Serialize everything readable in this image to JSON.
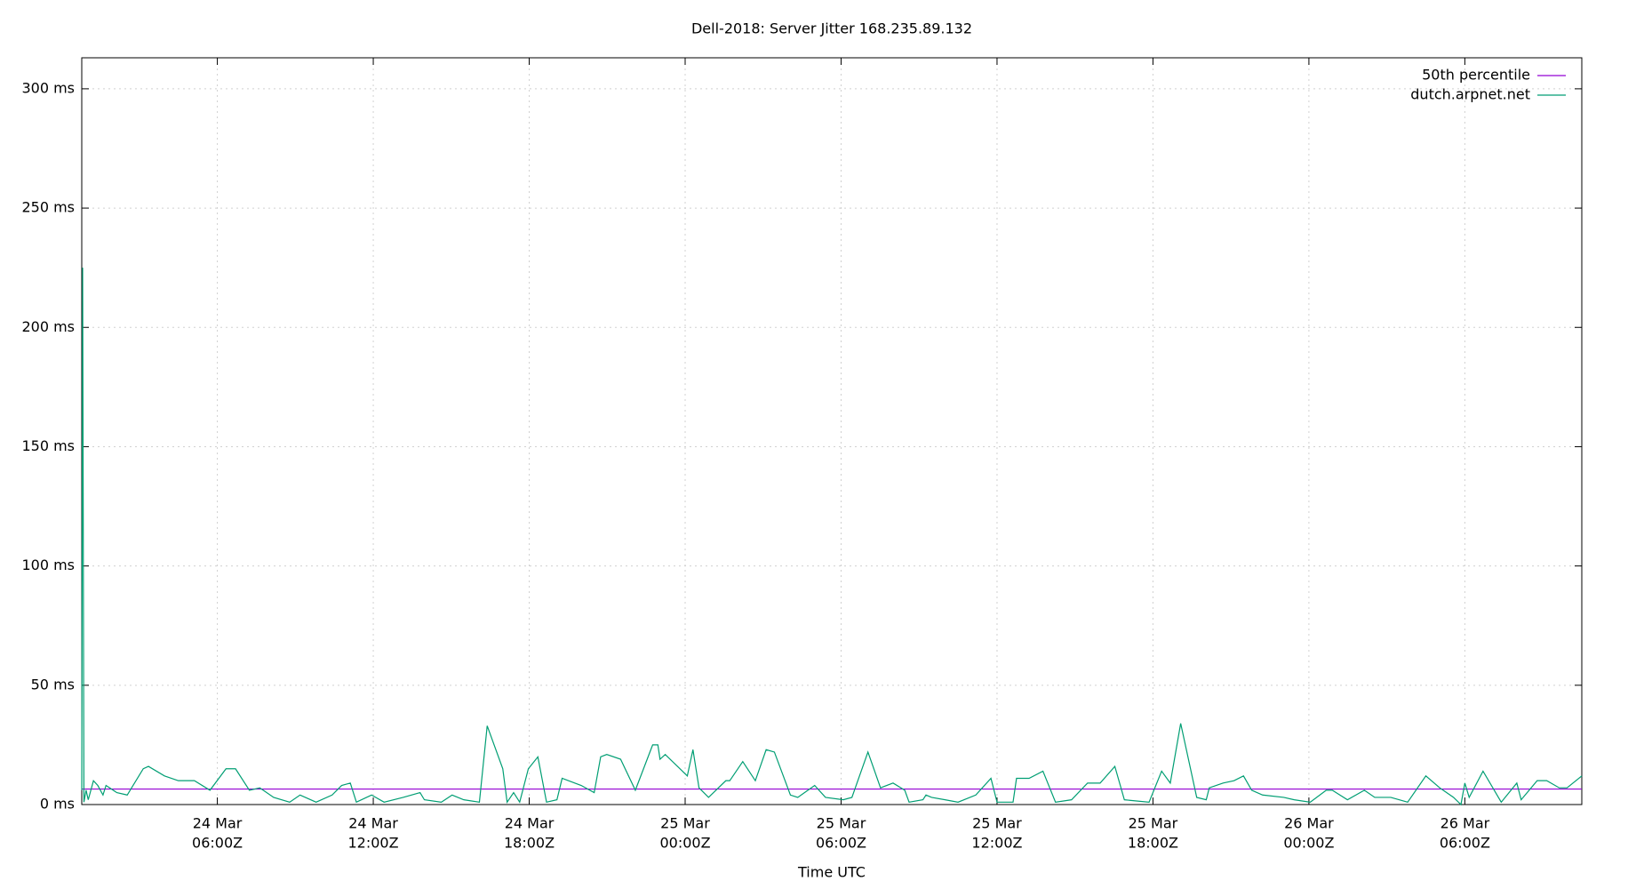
{
  "chart_data": {
    "type": "line",
    "title": "Dell-2018: Server Jitter 168.235.89.132",
    "xlabel": "Time UTC",
    "xlim": [
      "24 Mar 00:47Z",
      "26 Mar 10:30Z"
    ],
    "ylim": [
      0,
      313
    ],
    "yticks": [
      {
        "value": 0,
        "label": "0 ms"
      },
      {
        "value": 50,
        "label": "50 ms"
      },
      {
        "value": 100,
        "label": "100 ms"
      },
      {
        "value": 150,
        "label": "150 ms"
      },
      {
        "value": 200,
        "label": "200 ms"
      },
      {
        "value": 250,
        "label": "250 ms"
      },
      {
        "value": 300,
        "label": "300 ms"
      }
    ],
    "xticks": [
      {
        "value": "24 Mar 06:00Z",
        "label": [
          "24 Mar",
          "06:00Z"
        ]
      },
      {
        "value": "24 Mar 12:00Z",
        "label": [
          "24 Mar",
          "12:00Z"
        ]
      },
      {
        "value": "24 Mar 18:00Z",
        "label": [
          "24 Mar",
          "18:00Z"
        ]
      },
      {
        "value": "25 Mar 00:00Z",
        "label": [
          "25 Mar",
          "00:00Z"
        ]
      },
      {
        "value": "25 Mar 06:00Z",
        "label": [
          "25 Mar",
          "06:00Z"
        ]
      },
      {
        "value": "25 Mar 12:00Z",
        "label": [
          "25 Mar",
          "12:00Z"
        ]
      },
      {
        "value": "25 Mar 18:00Z",
        "label": [
          "25 Mar",
          "18:00Z"
        ]
      },
      {
        "value": "26 Mar 00:00Z",
        "label": [
          "26 Mar",
          "00:00Z"
        ]
      },
      {
        "value": "26 Mar 06:00Z",
        "label": [
          "26 Mar",
          "06:00Z"
        ]
      }
    ],
    "grid": true,
    "legend": "top-right",
    "series": [
      {
        "name": "50th percentile",
        "color": "#9400d3",
        "x": [
          "24 Mar 00:47Z",
          "26 Mar 10:30Z"
        ],
        "values": [
          6.5,
          6.5
        ]
      },
      {
        "name": "dutch.arpnet.net",
        "color": "#009e73",
        "x": [
          "24 Mar 00:47Z",
          "24 Mar 00:49Z",
          "24 Mar 00:52Z",
          "24 Mar 00:57Z",
          "24 Mar 01:02Z",
          "24 Mar 01:14Z",
          "24 Mar 01:24Z",
          "24 Mar 01:36Z",
          "24 Mar 01:43Z",
          "24 Mar 02:08Z",
          "24 Mar 02:32Z",
          "24 Mar 03:09Z",
          "24 Mar 03:21Z",
          "24 Mar 03:58Z",
          "24 Mar 04:30Z",
          "24 Mar 05:07Z",
          "24 Mar 05:43Z",
          "24 Mar 06:20Z",
          "24 Mar 06:42Z",
          "24 Mar 07:14Z",
          "24 Mar 07:38Z",
          "24 Mar 08:10Z",
          "24 Mar 08:47Z",
          "24 Mar 09:11Z",
          "24 Mar 09:48Z",
          "24 Mar 10:25Z",
          "24 Mar 10:47Z",
          "24 Mar 11:07Z",
          "24 Mar 11:21Z",
          "24 Mar 11:56Z",
          "24 Mar 12:25Z",
          "24 Mar 13:09Z",
          "24 Mar 13:48Z",
          "24 Mar 13:58Z",
          "24 Mar 14:37Z",
          "24 Mar 15:02Z",
          "24 Mar 15:29Z",
          "24 Mar 16:05Z",
          "24 Mar 16:23Z",
          "24 Mar 16:59Z",
          "24 Mar 17:09Z",
          "24 Mar 17:24Z",
          "24 Mar 17:38Z",
          "24 Mar 17:58Z",
          "24 Mar 18:20Z",
          "24 Mar 18:40Z",
          "24 Mar 19:04Z",
          "24 Mar 19:16Z",
          "24 Mar 20:00Z",
          "24 Mar 20:30Z",
          "24 Mar 20:45Z",
          "24 Mar 20:59Z",
          "24 Mar 21:31Z",
          "24 Mar 22:05Z",
          "24 Mar 22:45Z",
          "24 Mar 22:57Z",
          "24 Mar 23:02Z",
          "24 Mar 23:14Z",
          "25 Mar 00:05Z",
          "25 Mar 00:18Z",
          "25 Mar 00:32Z",
          "25 Mar 00:54Z",
          "25 Mar 01:34Z",
          "25 Mar 01:43Z",
          "25 Mar 02:13Z",
          "25 Mar 02:42Z",
          "25 Mar 03:07Z",
          "25 Mar 03:26Z",
          "25 Mar 04:03Z",
          "25 Mar 04:20Z",
          "25 Mar 04:59Z",
          "25 Mar 05:24Z",
          "25 Mar 06:05Z",
          "25 Mar 06:25Z",
          "25 Mar 07:02Z",
          "25 Mar 07:31Z",
          "25 Mar 08:00Z",
          "25 Mar 08:27Z",
          "25 Mar 08:37Z",
          "25 Mar 09:09Z",
          "25 Mar 09:16Z",
          "25 Mar 09:29Z",
          "25 Mar 10:00Z",
          "25 Mar 10:30Z",
          "25 Mar 11:11Z",
          "25 Mar 11:46Z",
          "25 Mar 12:00Z",
          "25 Mar 12:37Z",
          "25 Mar 12:45Z",
          "25 Mar 13:14Z",
          "25 Mar 13:46Z",
          "25 Mar 14:15Z",
          "25 Mar 14:52Z",
          "25 Mar 15:29Z",
          "25 Mar 15:58Z",
          "25 Mar 16:32Z",
          "25 Mar 16:54Z",
          "25 Mar 17:51Z",
          "25 Mar 18:20Z",
          "25 Mar 18:40Z",
          "25 Mar 19:04Z",
          "25 Mar 19:41Z",
          "25 Mar 20:03Z",
          "25 Mar 20:10Z",
          "25 Mar 20:42Z",
          "25 Mar 21:07Z",
          "25 Mar 21:29Z",
          "25 Mar 21:48Z",
          "25 Mar 22:13Z",
          "25 Mar 23:02Z",
          "25 Mar 23:26Z",
          "26 Mar 00:03Z",
          "26 Mar 00:40Z",
          "26 Mar 00:54Z",
          "26 Mar 01:29Z",
          "26 Mar 02:08Z",
          "26 Mar 02:32Z",
          "26 Mar 03:09Z",
          "26 Mar 03:48Z",
          "26 Mar 04:30Z",
          "26 Mar 05:02Z",
          "26 Mar 05:34Z",
          "26 Mar 05:51Z",
          "26 Mar 06:00Z",
          "26 Mar 06:10Z",
          "26 Mar 06:42Z",
          "26 Mar 07:24Z",
          "26 Mar 08:00Z",
          "26 Mar 08:10Z",
          "26 Mar 08:47Z",
          "26 Mar 09:09Z",
          "26 Mar 09:38Z",
          "26 Mar 09:56Z",
          "26 Mar 10:30Z"
        ],
        "values": [
          6,
          225,
          1,
          6,
          2,
          10,
          8,
          4,
          8,
          5,
          4,
          15,
          16,
          12,
          10,
          10,
          6,
          15,
          15,
          6,
          7,
          3,
          1,
          4,
          1,
          4,
          8,
          9,
          1,
          4,
          1,
          3,
          5,
          2,
          1,
          4,
          2,
          1,
          33,
          15,
          1,
          5,
          1,
          15,
          20,
          1,
          2,
          11,
          8,
          5,
          20,
          21,
          19,
          6,
          25,
          25,
          19,
          21,
          12,
          23,
          7,
          3,
          10,
          10,
          18,
          10,
          23,
          22,
          4,
          3,
          8,
          3,
          2,
          3,
          22,
          7,
          9,
          6,
          1,
          2,
          4,
          3,
          2,
          1,
          4,
          11,
          1,
          1,
          11,
          11,
          14,
          1,
          2,
          9,
          9,
          16,
          2,
          1,
          14,
          9,
          34,
          3,
          2,
          7,
          9,
          10,
          12,
          6,
          4,
          3,
          2,
          1,
          6,
          6,
          2,
          6,
          3,
          3,
          1,
          12,
          7,
          3,
          0,
          9,
          3,
          14,
          1,
          9,
          2,
          10,
          10,
          7,
          7,
          12
        ]
      }
    ]
  }
}
